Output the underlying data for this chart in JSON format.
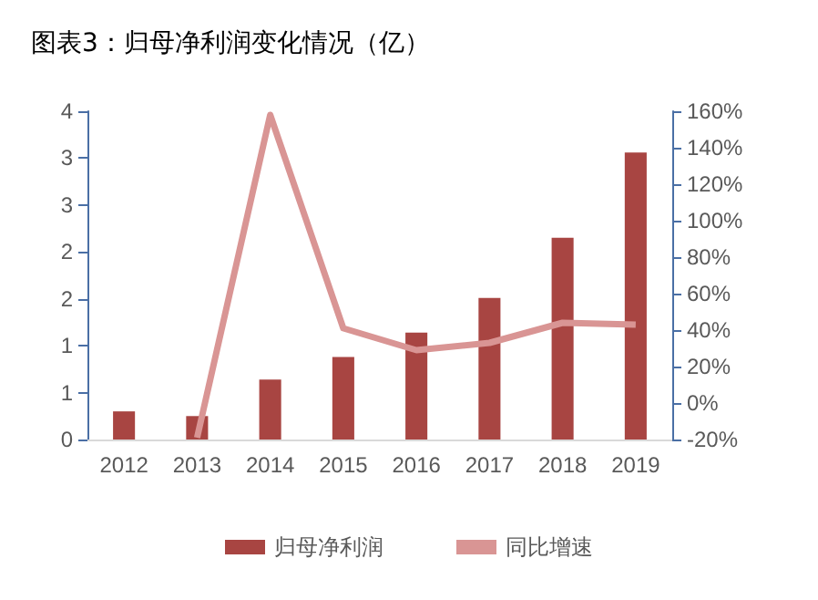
{
  "chart_data": {
    "type": "bar",
    "title": "图表3：归母净利润变化情况（亿）",
    "categories": [
      "2012",
      "2013",
      "2014",
      "2015",
      "2016",
      "2017",
      "2018",
      "2019"
    ],
    "series": [
      {
        "name": "归母净利润",
        "color": "#a84542",
        "values": [
          0.3,
          0.25,
          0.64,
          0.88,
          1.14,
          1.51,
          2.15,
          3.06
        ]
      },
      {
        "name": "同比增速",
        "type": "line",
        "axis": "y2",
        "color": "#d99594",
        "values": [
          null,
          -19,
          158,
          41,
          29,
          33,
          44,
          43
        ]
      }
    ],
    "ylim": [
      0,
      3.5
    ],
    "yticks": [
      {
        "value": 0,
        "label": "0"
      },
      {
        "value": 0.5,
        "label": "1"
      },
      {
        "value": 1,
        "label": "1"
      },
      {
        "value": 1.5,
        "label": "2"
      },
      {
        "value": 2,
        "label": "2"
      },
      {
        "value": 2.5,
        "label": "3"
      },
      {
        "value": 3,
        "label": "3"
      },
      {
        "value": 3.5,
        "label": "4"
      }
    ],
    "y2lim": [
      -20,
      160
    ],
    "y2ticks": [
      {
        "value": -20,
        "label": "-20%"
      },
      {
        "value": 0,
        "label": "0%"
      },
      {
        "value": 20,
        "label": "20%"
      },
      {
        "value": 40,
        "label": "40%"
      },
      {
        "value": 60,
        "label": "60%"
      },
      {
        "value": 80,
        "label": "80%"
      },
      {
        "value": 100,
        "label": "100%"
      },
      {
        "value": 120,
        "label": "120%"
      },
      {
        "value": 140,
        "label": "140%"
      },
      {
        "value": 160,
        "label": "160%"
      }
    ],
    "legend": "bottom",
    "grid": false,
    "marker": "none"
  }
}
